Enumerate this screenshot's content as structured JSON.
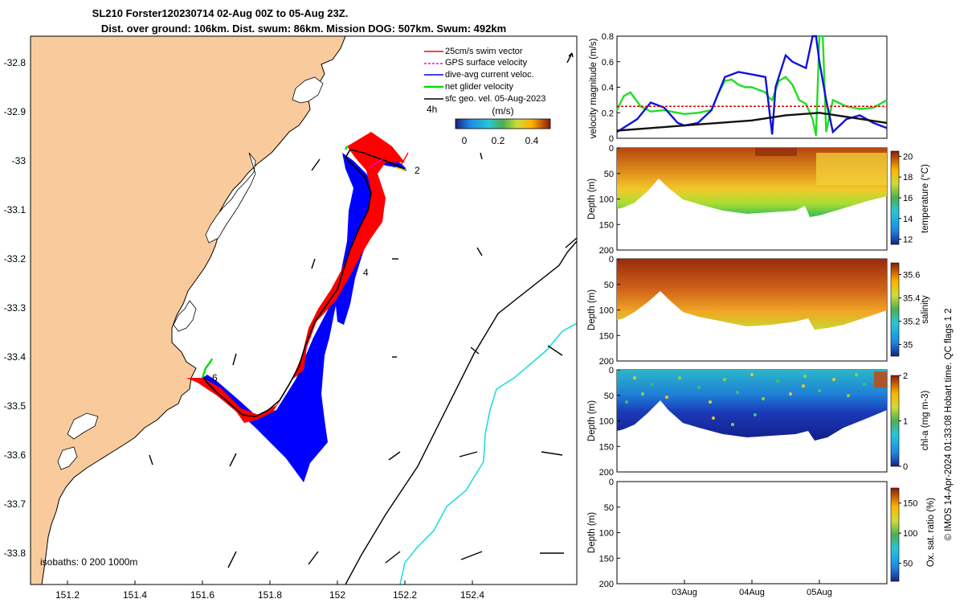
{
  "header": {
    "line1": "SL210 Forster120230714 02-Aug 00Z to 05-Aug 23Z.",
    "line2": "Dist. over ground: 106km. Dist. swum: 86km. Mission DOG: 507km. Swum: 492km"
  },
  "map": {
    "legend": [
      {
        "label": "25cm/s swim vector",
        "color": "#ff0000"
      },
      {
        "label": "GPS surface velocity",
        "color": "#ff00ff"
      },
      {
        "label": "dive-avg current veloc.",
        "color": "#0000ff"
      },
      {
        "label": "net glider velocity",
        "color": "#00ff00"
      },
      {
        "label": "sfc geo. vel. 05-Aug-2023",
        "color": "#000000"
      }
    ],
    "interval_label": "4h",
    "colorbar_title": "(m/s)",
    "colorbar_ticks": [
      "0",
      "0.2",
      "0.4"
    ],
    "day_markers": [
      "2",
      "4",
      "6"
    ],
    "isobaths_label": "isobaths: 0   200  1000m",
    "xticks": [
      "151.2",
      "151.4",
      "151.6",
      "151.8",
      "152",
      "152.2",
      "152.4"
    ],
    "yticks": [
      "-32.8",
      "-32.9",
      "-33",
      "-33.1",
      "-33.2",
      "-33.3",
      "-33.4",
      "-33.5",
      "-33.6",
      "-33.7",
      "-33.8"
    ],
    "colors": {
      "land": "#f9cb9c",
      "track_blue": "#0000ff",
      "track_red": "#ff0000",
      "isobath_cyan": "#22dddd"
    }
  },
  "chart_data": [
    {
      "type": "line",
      "title": "",
      "ylabel": "velocity magnitude (m/s)",
      "ylim": [
        0,
        0.8
      ],
      "yticks": [
        "0",
        "0.2",
        "0.4",
        "0.6",
        "0.8"
      ],
      "x_day_range": [
        2,
        6
      ],
      "series": [
        {
          "name": "net glider velocity",
          "color": "#22dd22",
          "x": [
            2.0,
            2.1,
            2.2,
            2.35,
            2.5,
            2.7,
            2.9,
            3.0,
            3.2,
            3.4,
            3.5,
            3.6,
            3.7,
            3.8,
            3.9,
            4.0,
            4.1,
            4.2,
            4.25,
            4.3,
            4.4,
            4.5,
            4.6,
            4.7,
            4.8,
            4.9,
            4.95,
            5.0,
            5.05,
            5.1,
            5.2,
            5.4,
            5.6,
            5.8,
            6.0
          ],
          "y": [
            0.22,
            0.33,
            0.36,
            0.25,
            0.21,
            0.22,
            0.2,
            0.19,
            0.2,
            0.22,
            0.35,
            0.45,
            0.46,
            0.42,
            0.4,
            0.4,
            0.38,
            0.36,
            0.32,
            0.3,
            0.45,
            0.48,
            0.42,
            0.3,
            0.27,
            0.15,
            0.02,
            0.8,
            0.8,
            0.05,
            0.3,
            0.25,
            0.23,
            0.24,
            0.3
          ]
        },
        {
          "name": "dive-avg current veloc.",
          "color": "#1111dd",
          "x": [
            2.0,
            2.3,
            2.5,
            2.7,
            2.9,
            3.0,
            3.2,
            3.4,
            3.5,
            3.6,
            3.8,
            4.0,
            4.2,
            4.3,
            4.35,
            4.5,
            4.6,
            4.8,
            4.9,
            4.95,
            5.0,
            5.1,
            5.2,
            5.4,
            5.6,
            5.8,
            6.0
          ],
          "y": [
            0.05,
            0.15,
            0.28,
            0.24,
            0.12,
            0.1,
            0.12,
            0.22,
            0.35,
            0.48,
            0.52,
            0.5,
            0.48,
            0.03,
            0.4,
            0.65,
            0.6,
            0.55,
            0.8,
            0.8,
            0.6,
            0.3,
            0.05,
            0.15,
            0.18,
            0.12,
            0.08
          ]
        },
        {
          "name": "25cm/s swim",
          "color": "#dd0000",
          "dashed": true,
          "x": [
            2.0,
            6.0
          ],
          "y": [
            0.25,
            0.25
          ]
        },
        {
          "name": "sfc geo. vel.",
          "color": "#111111",
          "x": [
            2.0,
            2.5,
            3.0,
            3.5,
            4.0,
            4.5,
            5.0,
            5.5,
            6.0
          ],
          "y": [
            0.06,
            0.08,
            0.1,
            0.12,
            0.14,
            0.18,
            0.2,
            0.16,
            0.12
          ]
        }
      ]
    },
    {
      "type": "heatmap",
      "variable": "temperature",
      "ylabel": "Depth (m)",
      "colorbar_label": "temperature (°C)",
      "yticks": [
        "0",
        "50",
        "100",
        "150",
        "200"
      ],
      "colorbar_ticks": [
        "12",
        "14",
        "16",
        "18",
        "20"
      ],
      "clim": [
        11.5,
        20.5
      ]
    },
    {
      "type": "heatmap",
      "variable": "salinity",
      "ylabel": "Depth (m)",
      "colorbar_label": "salinity",
      "yticks": [
        "0",
        "50",
        "100",
        "150",
        "200"
      ],
      "colorbar_ticks": [
        "35",
        "35.2",
        "35.4",
        "35.6"
      ],
      "clim": [
        34.9,
        35.7
      ]
    },
    {
      "type": "heatmap",
      "variable": "chl-a",
      "ylabel": "Depth (m)",
      "colorbar_label": "chl-a (mg m-3)",
      "yticks": [
        "0",
        "50",
        "100",
        "150",
        "200"
      ],
      "colorbar_ticks": [
        "0",
        "1",
        "2"
      ],
      "clim": [
        0,
        2
      ]
    },
    {
      "type": "heatmap",
      "variable": "oxygen saturation",
      "ylabel": "Depth (m)",
      "colorbar_label": "Ox. sat. ratio (%)",
      "yticks": [
        "0",
        "50",
        "100",
        "150",
        "200"
      ],
      "xticks": [
        "03Aug",
        "04Aug",
        "05Aug"
      ],
      "colorbar_ticks": [
        "50",
        "100",
        "150"
      ],
      "clim": [
        20,
        175
      ]
    }
  ],
  "footer_note": "© IMOS 14-Apr-2024 01:33:08 Hobart time. QC flags 1  2"
}
